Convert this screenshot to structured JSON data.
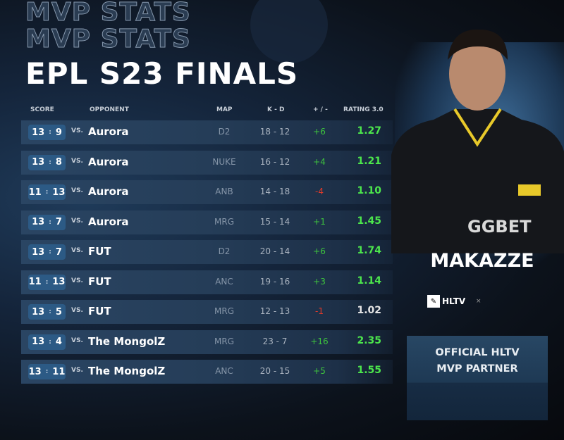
{
  "header": {
    "outline_lines": [
      "MVP STATS",
      "MVP STATS"
    ],
    "title": "EPL S23 FINALS"
  },
  "columns": {
    "score": "SCORE",
    "opponent": "OPPONENT",
    "map": "MAP",
    "kd": "K - D",
    "pm": "+ / -",
    "rating": "RATING 3.0"
  },
  "rows": [
    {
      "s1": "13",
      "s2": "9",
      "vs": "VS.",
      "opponent": "Aurora",
      "map": "D2",
      "kd": "18 - 12",
      "pm": "+6",
      "rating": "1.27",
      "pmc": "pos",
      "rc": "good"
    },
    {
      "s1": "13",
      "s2": "8",
      "vs": "VS.",
      "opponent": "Aurora",
      "map": "NUKE",
      "kd": "16 - 12",
      "pm": "+4",
      "rating": "1.21",
      "pmc": "pos",
      "rc": "good"
    },
    {
      "s1": "11",
      "s2": "13",
      "vs": "VS.",
      "opponent": "Aurora",
      "map": "ANB",
      "kd": "14 - 18",
      "pm": "-4",
      "rating": "1.10",
      "pmc": "neg",
      "rc": "good"
    },
    {
      "s1": "13",
      "s2": "7",
      "vs": "VS.",
      "opponent": "Aurora",
      "map": "MRG",
      "kd": "15 - 14",
      "pm": "+1",
      "rating": "1.45",
      "pmc": "pos",
      "rc": "good"
    },
    {
      "s1": "13",
      "s2": "7",
      "vs": "VS.",
      "opponent": "FUT",
      "map": "D2",
      "kd": "20 - 14",
      "pm": "+6",
      "rating": "1.74",
      "pmc": "pos",
      "rc": "good"
    },
    {
      "s1": "11",
      "s2": "13",
      "vs": "VS.",
      "opponent": "FUT",
      "map": "ANC",
      "kd": "19 - 16",
      "pm": "+3",
      "rating": "1.14",
      "pmc": "pos",
      "rc": "good"
    },
    {
      "s1": "13",
      "s2": "5",
      "vs": "VS.",
      "opponent": "FUT",
      "map": "MRG",
      "kd": "12 - 13",
      "pm": "-1",
      "rating": "1.02",
      "pmc": "neg",
      "rc": "neu"
    },
    {
      "s1": "13",
      "s2": "4",
      "vs": "VS.",
      "opponent": "The MongolZ",
      "map": "MRG",
      "kd": "23 - 7",
      "pm": "+16",
      "rating": "2.35",
      "pmc": "pos",
      "rc": "good"
    },
    {
      "s1": "13",
      "s2": "11",
      "vs": "VS.",
      "opponent": "The MongolZ",
      "map": "ANC",
      "kd": "20 - 15",
      "pm": "+5",
      "rating": "1.55",
      "pmc": "pos",
      "rc": "good"
    }
  ],
  "player": {
    "name": "MAKAZZE",
    "jersey_sponsor": "GGBET",
    "logo": "HLTV",
    "close": "×"
  },
  "partner": {
    "line1": "OFFICIAL HLTV",
    "line2": "MVP PARTNER"
  }
}
